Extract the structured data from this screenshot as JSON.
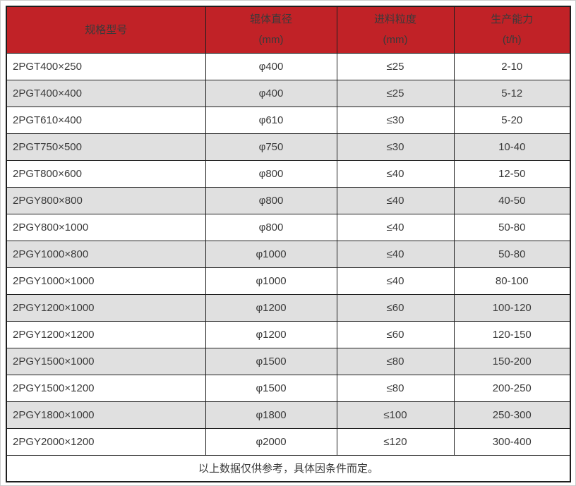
{
  "table": {
    "columns": [
      {
        "label": "规格型号",
        "unit": ""
      },
      {
        "label": "辊体直径",
        "unit": "(mm)"
      },
      {
        "label": "进料粒度",
        "unit": "(mm)"
      },
      {
        "label": "生产能力",
        "unit": "(t/h)"
      }
    ],
    "rows": [
      [
        "2PGT400×250",
        "φ400",
        "≤25",
        "2-10"
      ],
      [
        "2PGT400×400",
        "φ400",
        "≤25",
        "5-12"
      ],
      [
        "2PGT610×400",
        "φ610",
        "≤30",
        "5-20"
      ],
      [
        "2PGT750×500",
        "φ750",
        "≤30",
        "10-40"
      ],
      [
        "2PGT800×600",
        "φ800",
        "≤40",
        "12-50"
      ],
      [
        "2PGY800×800",
        "φ800",
        "≤40",
        "40-50"
      ],
      [
        "2PGY800×1000",
        "φ800",
        "≤40",
        "50-80"
      ],
      [
        "2PGY1000×800",
        "φ1000",
        "≤40",
        "50-80"
      ],
      [
        "2PGY1000×1000",
        "φ1000",
        "≤40",
        "80-100"
      ],
      [
        "2PGY1200×1000",
        "φ1200",
        "≤60",
        "100-120"
      ],
      [
        "2PGY1200×1200",
        "φ1200",
        "≤60",
        "120-150"
      ],
      [
        "2PGY1500×1000",
        "φ1500",
        "≤80",
        "150-200"
      ],
      [
        "2PGY1500×1200",
        "φ1500",
        "≤80",
        "200-250"
      ],
      [
        "2PGY1800×1000",
        "φ1800",
        "≤100",
        "250-300"
      ],
      [
        "2PGY2000×1200",
        "φ2000",
        "≤120",
        "300-400"
      ]
    ],
    "footer_note": "以上数据仅供参考，具体因条件而定。"
  },
  "colors": {
    "header_bg": "#c12227",
    "header_text": "#ffffff",
    "row_bg": "#ffffff",
    "row_alt_bg": "#e0e0e0",
    "border": "#1f1f1f",
    "text": "#3a3a3a",
    "page_frame": "#cccccc"
  },
  "chart_data": {
    "type": "table",
    "title": "",
    "columns": [
      "规格型号",
      "辊体直径 (mm)",
      "进料粒度 (mm)",
      "生产能力 (t/h)"
    ],
    "rows": [
      [
        "2PGT400×250",
        "φ400",
        "≤25",
        "2-10"
      ],
      [
        "2PGT400×400",
        "φ400",
        "≤25",
        "5-12"
      ],
      [
        "2PGT610×400",
        "φ610",
        "≤30",
        "5-20"
      ],
      [
        "2PGT750×500",
        "φ750",
        "≤30",
        "10-40"
      ],
      [
        "2PGT800×600",
        "φ800",
        "≤40",
        "12-50"
      ],
      [
        "2PGY800×800",
        "φ800",
        "≤40",
        "40-50"
      ],
      [
        "2PGY800×1000",
        "φ800",
        "≤40",
        "50-80"
      ],
      [
        "2PGY1000×800",
        "φ1000",
        "≤40",
        "50-80"
      ],
      [
        "2PGY1000×1000",
        "φ1000",
        "≤40",
        "80-100"
      ],
      [
        "2PGY1200×1000",
        "φ1200",
        "≤60",
        "100-120"
      ],
      [
        "2PGY1200×1200",
        "φ1200",
        "≤60",
        "120-150"
      ],
      [
        "2PGY1500×1000",
        "φ1500",
        "≤80",
        "150-200"
      ],
      [
        "2PGY1500×1200",
        "φ1500",
        "≤80",
        "200-250"
      ],
      [
        "2PGY1800×1000",
        "φ1800",
        "≤100",
        "250-300"
      ],
      [
        "2PGY2000×1200",
        "φ2000",
        "≤120",
        "300-400"
      ]
    ],
    "footnote": "以上数据仅供参考，具体因条件而定。"
  }
}
